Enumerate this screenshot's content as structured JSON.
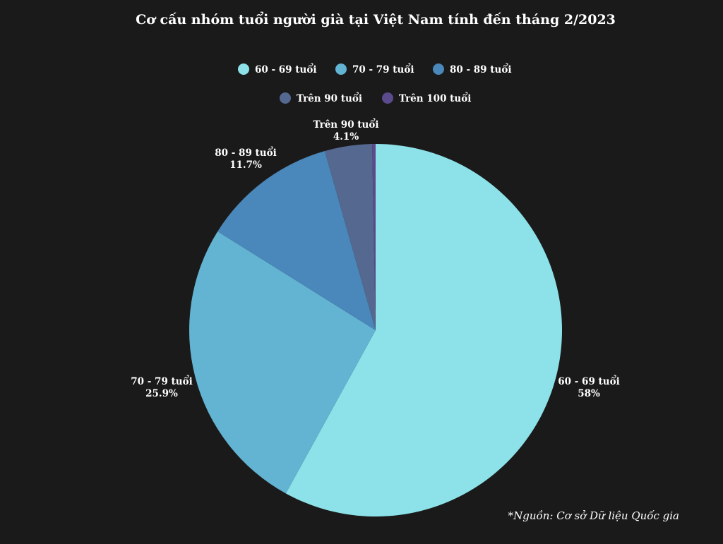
{
  "chart_data": {
    "type": "pie",
    "title": "Cơ cấu nhóm tuổi người già tại Việt Nam tính đến tháng 2/2023",
    "categories": [
      "60 - 69 tuổi",
      "70 - 79 tuổi",
      "80 - 89 tuổi",
      "Trên 90 tuổi",
      "Trên 100 tuổi"
    ],
    "values": [
      58,
      25.9,
      11.7,
      4.1,
      0.3
    ],
    "value_labels": [
      "58%",
      "25.9%",
      "11.7%",
      "4.1%",
      ""
    ],
    "colors": [
      "#8ce2e8",
      "#63b3d3",
      "#4a87ba",
      "#55688f",
      "#5b4a8c"
    ],
    "legend_position": "top",
    "start_angle": "top, clockwise"
  },
  "source_note": "*Nguồn: Cơ sở Dữ liệu Quốc gia"
}
